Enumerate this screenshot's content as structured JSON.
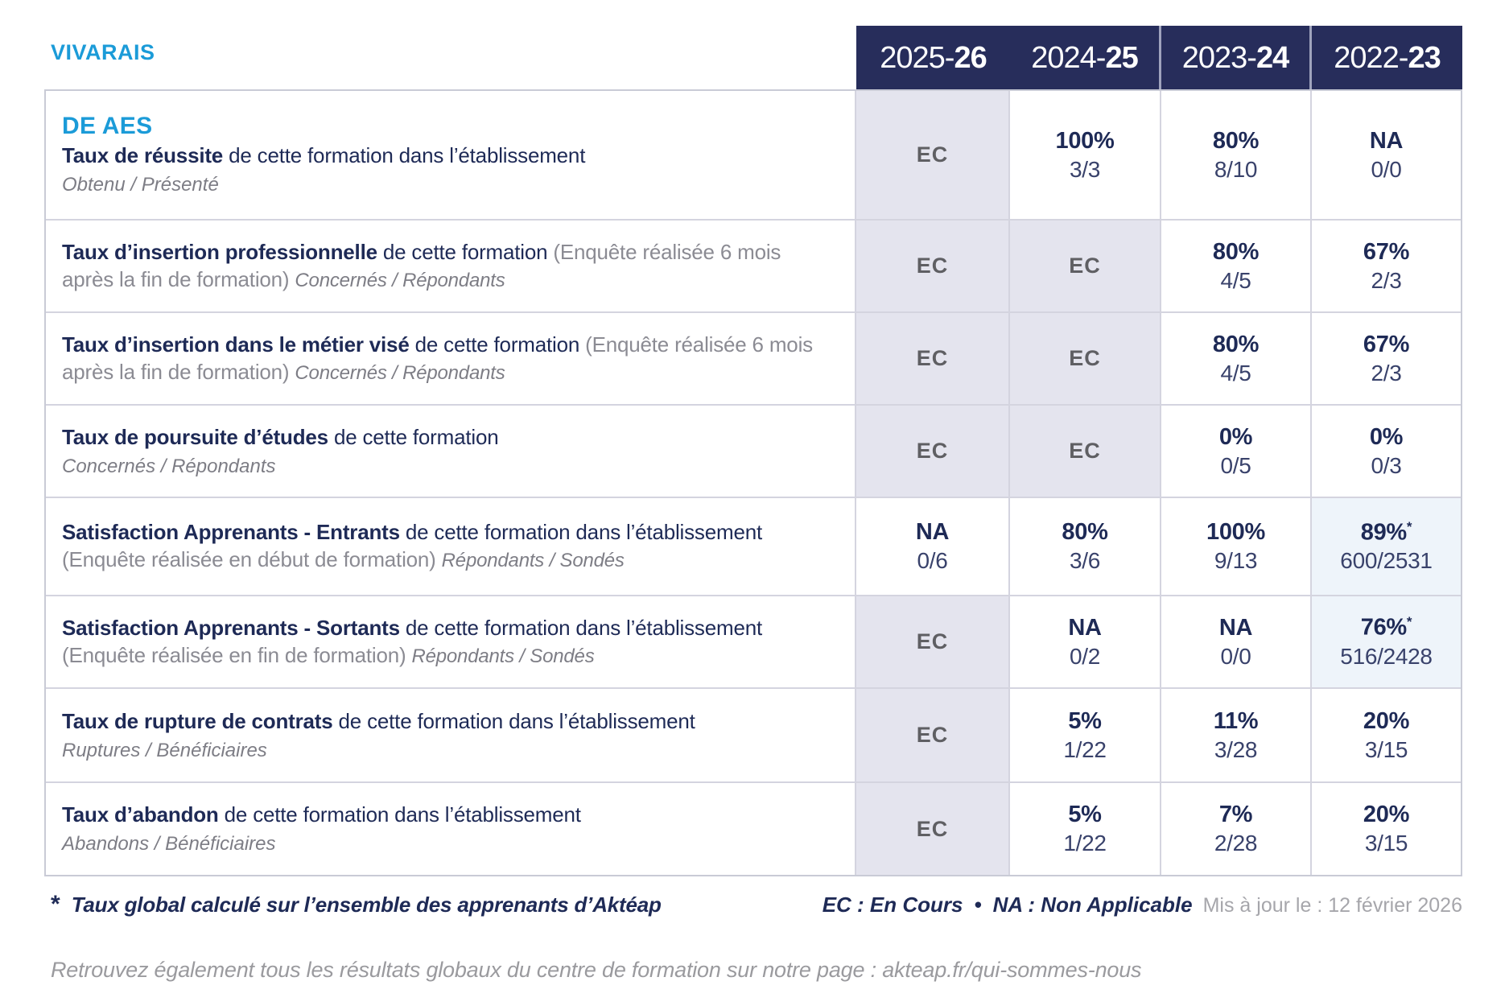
{
  "brand": {
    "site_label": "VIVARAIS",
    "program": "DE AES"
  },
  "colors": {
    "accent_blue": "#1b9bd8",
    "navy_text": "#1e2a56",
    "header_bg": "#272d5b",
    "lavender_cell_bg": "#e4e4ee",
    "light_blue_cell_bg": "#eef4fa",
    "grid_line": "#d4d4df"
  },
  "header": {
    "years": [
      {
        "prefix": "2025-",
        "suffix": "26"
      },
      {
        "prefix": "2024-",
        "suffix": "25"
      },
      {
        "prefix": "2023-",
        "suffix": "24"
      },
      {
        "prefix": "2022-",
        "suffix": "23"
      }
    ]
  },
  "table": {
    "rows": [
      {
        "title": "Taux de réussite",
        "desc": " de cette formation dans l’établissement",
        "paren": "",
        "tail": "",
        "sub": "Obtenu / Présenté",
        "cells": [
          {
            "main": "EC",
            "frac": "",
            "star": ""
          },
          {
            "main": "100%",
            "frac": "3/3",
            "star": ""
          },
          {
            "main": "80%",
            "frac": "8/10",
            "star": ""
          },
          {
            "main": "NA",
            "frac": "0/0",
            "star": ""
          }
        ]
      },
      {
        "title": "Taux d’insertion professionnelle",
        "desc": " de cette formation ",
        "paren": "(Enquête réalisée 6 mois après la fin de formation) ",
        "tail": "Concernés / Répondants",
        "sub": "",
        "cells": [
          {
            "main": "EC",
            "frac": "",
            "star": ""
          },
          {
            "main": "EC",
            "frac": "",
            "star": ""
          },
          {
            "main": "80%",
            "frac": "4/5",
            "star": ""
          },
          {
            "main": "67%",
            "frac": "2/3",
            "star": ""
          }
        ]
      },
      {
        "title": "Taux d’insertion dans le métier visé",
        "desc": " de cette formation ",
        "paren": "(Enquête réalisée 6 mois après la fin de formation) ",
        "tail": "Concernés / Répondants",
        "sub": "",
        "cells": [
          {
            "main": "EC",
            "frac": "",
            "star": ""
          },
          {
            "main": "EC",
            "frac": "",
            "star": ""
          },
          {
            "main": "80%",
            "frac": "4/5",
            "star": ""
          },
          {
            "main": "67%",
            "frac": "2/3",
            "star": ""
          }
        ]
      },
      {
        "title": "Taux de poursuite d’études",
        "desc": " de cette formation",
        "paren": "",
        "tail": "",
        "sub": "Concernés / Répondants",
        "cells": [
          {
            "main": "EC",
            "frac": "",
            "star": ""
          },
          {
            "main": "EC",
            "frac": "",
            "star": ""
          },
          {
            "main": "0%",
            "frac": "0/5",
            "star": ""
          },
          {
            "main": "0%",
            "frac": "0/3",
            "star": ""
          }
        ]
      },
      {
        "title": "Satisfaction Apprenants - Entrants",
        "desc": " de cette formation dans l’établissement ",
        "paren": "(Enquête réalisée en début de formation) ",
        "tail": "Répondants / Sondés",
        "sub": "",
        "cells": [
          {
            "main": "NA",
            "frac": "0/6",
            "star": ""
          },
          {
            "main": "80%",
            "frac": "3/6",
            "star": ""
          },
          {
            "main": "100%",
            "frac": "9/13",
            "star": ""
          },
          {
            "main": "89%",
            "frac": "600/2531",
            "star": "*"
          }
        ]
      },
      {
        "title": "Satisfaction Apprenants - Sortants",
        "desc": " de cette formation dans l’établissement ",
        "paren": "(Enquête réalisée en fin de formation) ",
        "tail": "Répondants / Sondés",
        "sub": "",
        "cells": [
          {
            "main": "EC",
            "frac": "",
            "star": ""
          },
          {
            "main": "NA",
            "frac": "0/2",
            "star": ""
          },
          {
            "main": "NA",
            "frac": "0/0",
            "star": ""
          },
          {
            "main": "76%",
            "frac": "516/2428",
            "star": "*"
          }
        ]
      },
      {
        "title": "Taux de rupture de contrats",
        "desc": " de cette formation dans l’établissement",
        "paren": "",
        "tail": "",
        "sub": "Ruptures / Bénéficiaires",
        "cells": [
          {
            "main": "EC",
            "frac": "",
            "star": ""
          },
          {
            "main": "5%",
            "frac": "1/22",
            "star": ""
          },
          {
            "main": "11%",
            "frac": "3/28",
            "star": ""
          },
          {
            "main": "20%",
            "frac": "3/15",
            "star": ""
          }
        ]
      },
      {
        "title": "Taux d’abandon",
        "desc": " de cette formation dans l’établissement",
        "paren": "",
        "tail": "",
        "sub": "Abandons / Bénéficiaires",
        "cells": [
          {
            "main": "EC",
            "frac": "",
            "star": ""
          },
          {
            "main": "5%",
            "frac": "1/22",
            "star": ""
          },
          {
            "main": "7%",
            "frac": "2/28",
            "star": ""
          },
          {
            "main": "20%",
            "frac": "3/15",
            "star": ""
          }
        ]
      }
    ]
  },
  "footer": {
    "note_star": "*",
    "note": "Taux global calculé sur l’ensemble des apprenants d’Aktéap",
    "legend_ec": "EC : En Cours",
    "legend_sep": "•",
    "legend_na": "NA : Non Applicable",
    "updated": "Mis à jour le : 12 février 2026",
    "bottom_note": "Retrouvez également tous les résultats globaux du centre de formation sur notre page : akteap.fr/qui-sommes-nous"
  }
}
